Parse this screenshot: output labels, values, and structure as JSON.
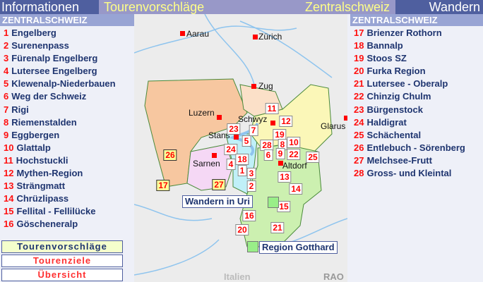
{
  "header": {
    "left": "Informationen",
    "center": "Tourenvorschläge",
    "center_right": "Zentralschweiz",
    "right": "Wandern"
  },
  "left_section": "ZENTRALSCHWEIZ",
  "right_section": "ZENTRALSCHWEIZ",
  "left_list": [
    {
      "n": "1",
      "label": "Engelberg"
    },
    {
      "n": "2",
      "label": "Surenenpass"
    },
    {
      "n": "3",
      "label": "Fürenalp Engelberg"
    },
    {
      "n": "4",
      "label": "Lutersee Engelberg"
    },
    {
      "n": "5",
      "label": "Klewenalp-Niederbauen"
    },
    {
      "n": "6",
      "label": "Weg der Schweiz"
    },
    {
      "n": "7",
      "label": "Rigi"
    },
    {
      "n": "8",
      "label": "Riemenstalden"
    },
    {
      "n": "9",
      "label": "Eggbergen"
    },
    {
      "n": "10",
      "label": "Glattalp"
    },
    {
      "n": "11",
      "label": "Hochstuckli"
    },
    {
      "n": "12",
      "label": "Mythen-Region"
    },
    {
      "n": "13",
      "label": "Strängmatt"
    },
    {
      "n": "14",
      "label": "Chrüzlipass"
    },
    {
      "n": "15",
      "label": "Fellital - Fellilücke"
    },
    {
      "n": "16",
      "label": "Göscheneralp"
    }
  ],
  "right_list": [
    {
      "n": "17",
      "label": "Brienzer Rothorn"
    },
    {
      "n": "18",
      "label": "Bannalp"
    },
    {
      "n": "19",
      "label": "Stoos SZ"
    },
    {
      "n": "20",
      "label": "Furka Region"
    },
    {
      "n": "21",
      "label": "Lutersee - Oberalp"
    },
    {
      "n": "22",
      "label": "Chinzig Chulm"
    },
    {
      "n": "23",
      "label": "Bürgenstock"
    },
    {
      "n": "24",
      "label": "Haldigrat"
    },
    {
      "n": "25",
      "label": "Schächental"
    },
    {
      "n": "26",
      "label": "Entlebuch - Sörenberg"
    },
    {
      "n": "27",
      "label": "Melchsee-Frutt"
    },
    {
      "n": "28",
      "label": "Gross- und Kleintal"
    }
  ],
  "buttons": {
    "tours": "Tourenvorschläge",
    "targets": "Tourenziele",
    "overview": "Übersicht"
  },
  "map": {
    "cities": [
      "Aarau",
      "Zürich",
      "Zug",
      "Luzern",
      "Schwyz",
      "Stans",
      "Glarus",
      "Sarnen",
      "Altdorf"
    ],
    "markers": [
      "11",
      "12",
      "23",
      "7",
      "19",
      "5",
      "28",
      "8",
      "10",
      "24",
      "6",
      "9",
      "22",
      "25",
      "18",
      "4",
      "1",
      "3",
      "2",
      "13",
      "14",
      "15",
      "16",
      "20",
      "21",
      "26",
      "17",
      "27"
    ],
    "links": {
      "uri": "Wandern in Uri",
      "gotthard": "Region Gotthard"
    },
    "labels": {
      "italy": "Italien",
      "credit": "RAO"
    }
  },
  "colors": {
    "header_dark": "#4f5f9f",
    "header_mid": "#9898c8",
    "header_text": "#ffff88",
    "number_red": "#ff1010",
    "list_text": "#1f3570"
  }
}
